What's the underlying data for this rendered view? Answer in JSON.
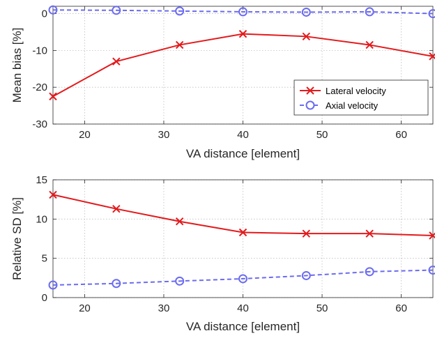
{
  "chart_data": [
    {
      "type": "line",
      "xlabel": "VA distance [element]",
      "ylabel": "Mean bias [%]",
      "xlim": [
        16,
        64
      ],
      "ylim": [
        -30,
        2
      ],
      "xticks": [
        20,
        30,
        40,
        50,
        60
      ],
      "yticks": [
        0,
        -10,
        -20,
        -30
      ],
      "grid": true,
      "legend": "lower-right",
      "x": [
        16,
        24,
        32,
        40,
        48,
        56,
        64
      ],
      "series": [
        {
          "name": "Lateral velocity",
          "color": "#e31a1c",
          "marker": "x",
          "dash": "solid",
          "values": [
            -22.5,
            -13.0,
            -8.5,
            -5.5,
            -6.2,
            -8.5,
            -11.6
          ]
        },
        {
          "name": "Axial velocity",
          "color": "#6b6bf0",
          "marker": "o",
          "dash": "dashed",
          "values": [
            1.0,
            0.9,
            0.7,
            0.5,
            0.4,
            0.5,
            0.0
          ]
        }
      ]
    },
    {
      "type": "line",
      "xlabel": "VA distance [element]",
      "ylabel": "Relative SD [%]",
      "xlim": [
        16,
        64
      ],
      "ylim": [
        0,
        15
      ],
      "xticks": [
        20,
        30,
        40,
        50,
        60
      ],
      "yticks": [
        0,
        5,
        10,
        15
      ],
      "grid": true,
      "x": [
        16,
        24,
        32,
        40,
        48,
        56,
        64
      ],
      "series": [
        {
          "color": "#e31a1c",
          "marker": "x",
          "dash": "solid",
          "values": [
            13.1,
            11.3,
            9.7,
            8.3,
            8.15,
            8.15,
            7.9
          ]
        },
        {
          "color": "#6b6bf0",
          "marker": "o",
          "dash": "dashed",
          "values": [
            1.6,
            1.8,
            2.1,
            2.4,
            2.8,
            3.3,
            3.5
          ]
        }
      ]
    }
  ]
}
